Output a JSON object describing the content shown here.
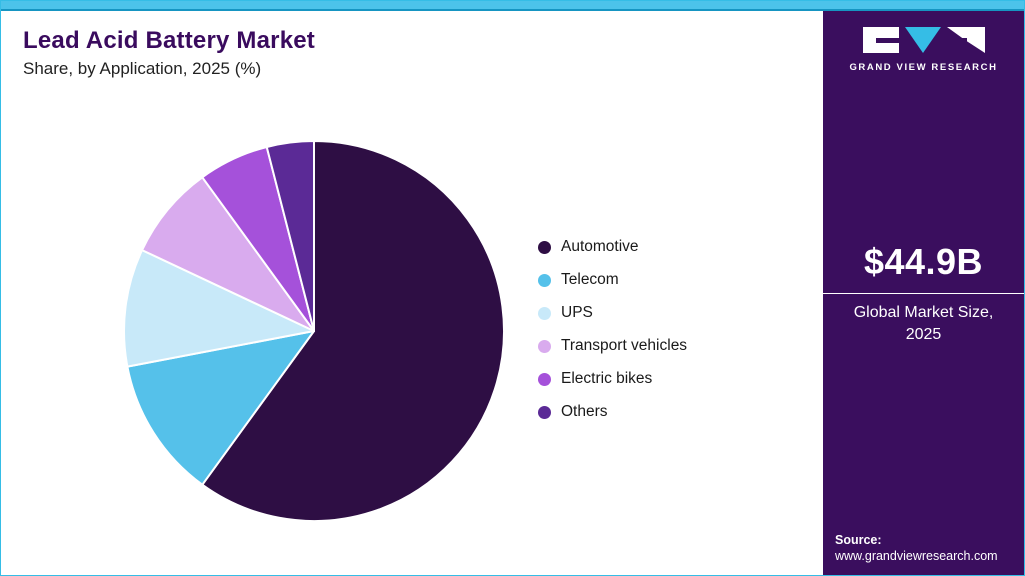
{
  "header": {
    "title": "Lead Acid Battery Market",
    "subtitle": "Share, by Application, 2025 (%)"
  },
  "chart_data": {
    "type": "pie",
    "title": "Lead Acid Battery Market Share, by Application, 2025 (%)",
    "categories": [
      "Automotive",
      "Telecom",
      "UPS",
      "Transport vehicles",
      "Electric bikes",
      "Others"
    ],
    "values": [
      60,
      12,
      10,
      8,
      6,
      4
    ],
    "unit": "percent",
    "colors": [
      "#2e0e44",
      "#55c1ea",
      "#c8e9f9",
      "#d9abee",
      "#a551da",
      "#5b2a96"
    ],
    "legend_position": "right",
    "start_angle_deg": 0,
    "direction": "clockwise",
    "slice_border_color": "#ffffff"
  },
  "sidebar": {
    "brand": "GRAND VIEW RESEARCH",
    "market_size_value": "$44.9B",
    "market_size_label_line1": "Global Market Size,",
    "market_size_label_line2": "2025",
    "source_label": "Source:",
    "source_url": "www.grandviewresearch.com",
    "background": "#3a0e5e",
    "accent": "#35bde6"
  }
}
